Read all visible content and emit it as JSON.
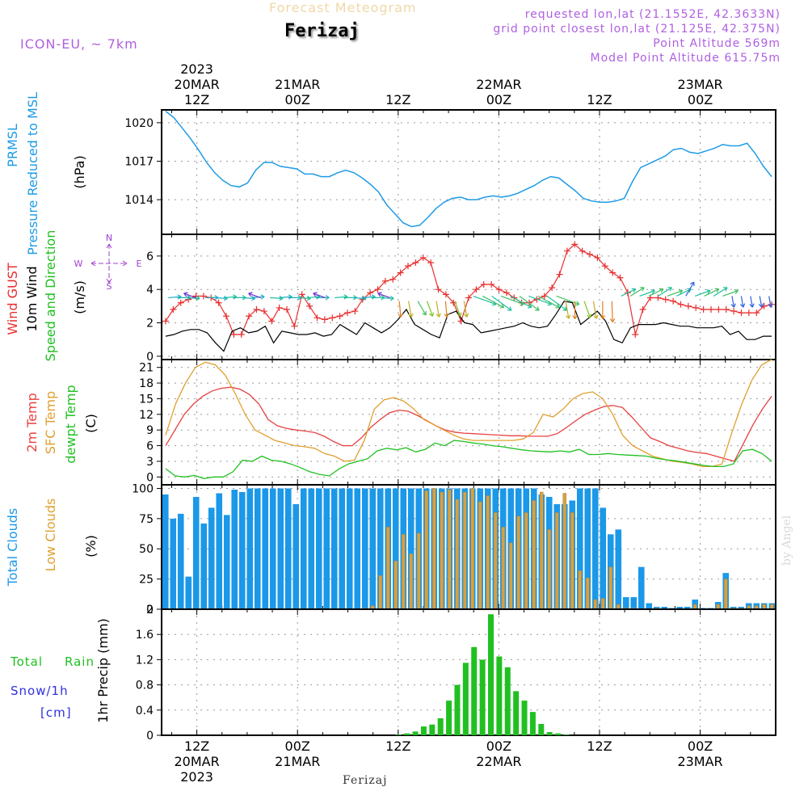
{
  "header": {
    "title_faint": "Forecast Meteogram",
    "location": "Ferizaj",
    "model": "ICON-EU, ~ 7km",
    "requested": "requested lon,lat (21.1552E, 42.3633N)",
    "grid_point": "grid point closest lon,lat (21.125E, 42.375N)",
    "point_alt": "Point Altitude 569m",
    "model_alt": "Model Point Altitude 615.75m"
  },
  "footer": {
    "location": "Ferizaj",
    "credit": "by Angel"
  },
  "colors": {
    "pressure": "#1e9be6",
    "gust": "#e83030",
    "wind": "#000000",
    "temp": "#e84040",
    "sfc": "#e0a030",
    "dew": "#20c020",
    "total": "#1b98e8",
    "low": "#d8a040",
    "rain": "#20c020",
    "snow": "#3030e0",
    "axisLabel": "#a040d0"
  },
  "time_axis": {
    "top_labels": [
      {
        "t": 12,
        "lines": [
          "2023",
          "20MAR",
          "12Z"
        ]
      },
      {
        "t": 24,
        "lines": [
          "21MAR",
          "00Z"
        ]
      },
      {
        "t": 36,
        "lines": [
          "12Z"
        ]
      },
      {
        "t": 48,
        "lines": [
          "22MAR",
          "00Z"
        ]
      },
      {
        "t": 60,
        "lines": [
          "12Z"
        ]
      },
      {
        "t": 72,
        "lines": [
          "23MAR",
          "00Z"
        ]
      }
    ],
    "bottom_labels": [
      {
        "t": 12,
        "lines": [
          "12Z",
          "20MAR",
          "2023"
        ]
      },
      {
        "t": 24,
        "lines": [
          "00Z",
          "21MAR"
        ]
      },
      {
        "t": 36,
        "lines": [
          "12Z"
        ]
      },
      {
        "t": 48,
        "lines": [
          "00Z",
          "22MAR"
        ]
      },
      {
        "t": 60,
        "lines": [
          "12Z"
        ]
      },
      {
        "t": 72,
        "lines": [
          "00Z",
          "23MAR"
        ]
      }
    ]
  },
  "compass": {
    "n": "N",
    "s": "S",
    "w": "W",
    "e": "E"
  },
  "chart_data": [
    {
      "type": "line",
      "panel": "pressure",
      "ylabels": [
        "PRMSL",
        "Pressure Reduced to MSL"
      ],
      "units": "(hPa)",
      "ylim": [
        1011.3,
        1021.0
      ],
      "yticks": [
        1014,
        1017,
        1020
      ],
      "series": [
        {
          "name": "PRMSL",
          "values": [
            1020.9,
            1020.4,
            1019.6,
            1018.8,
            1017.9,
            1016.9,
            1016.1,
            1015.5,
            1015.1,
            1015.0,
            1015.3,
            1016.3,
            1016.9,
            1016.9,
            1016.6,
            1016.5,
            1016.4,
            1016.0,
            1016.0,
            1015.8,
            1015.8,
            1016.1,
            1016.3,
            1016.1,
            1015.7,
            1015.2,
            1014.6,
            1013.6,
            1012.9,
            1012.2,
            1011.9,
            1012.0,
            1012.6,
            1013.3,
            1013.8,
            1014.1,
            1014.2,
            1014.0,
            1014.0,
            1014.2,
            1014.3,
            1014.2,
            1014.3,
            1014.5,
            1014.8,
            1015.1,
            1015.5,
            1015.8,
            1015.7,
            1015.2,
            1014.7,
            1014.1,
            1013.9,
            1013.8,
            1013.8,
            1013.9,
            1014.1,
            1015.4,
            1016.5,
            1016.8,
            1017.1,
            1017.4,
            1017.9,
            1018.0,
            1017.7,
            1017.6,
            1017.8,
            1018.0,
            1018.3,
            1018.2,
            1018.2,
            1018.4,
            1017.6,
            1016.6,
            1015.8
          ]
        }
      ]
    },
    {
      "type": "line",
      "panel": "wind",
      "ylabels": [
        "Wind GUST",
        "10m Wind",
        "Speed and Direction"
      ],
      "units": "(m/s)",
      "ylim": [
        -0.2,
        7.3
      ],
      "yticks": [
        0,
        2,
        4,
        6
      ],
      "series": [
        {
          "name": "Wind GUST",
          "values": [
            2.1,
            2.8,
            3.2,
            3.4,
            3.6,
            3.6,
            3.5,
            3.2,
            2.4,
            1.3,
            1.3,
            2.4,
            2.8,
            2.7,
            2.1,
            2.9,
            2.8,
            1.8,
            3.7,
            3.0,
            2.3,
            2.2,
            2.3,
            2.4,
            2.6,
            2.7,
            3.4,
            3.8,
            4.0,
            4.5,
            4.6,
            5.0,
            5.4,
            5.6,
            5.9,
            5.6,
            4.0,
            3.7,
            3.2,
            2.1,
            3.5,
            4.0,
            4.3,
            4.3,
            4.0,
            3.8,
            3.5,
            3.2,
            3.2,
            3.4,
            3.6,
            4.1,
            4.9,
            6.3,
            6.7,
            6.3,
            6.1,
            5.9,
            5.4,
            5.0,
            4.7,
            3.8,
            1.3,
            2.8,
            3.5,
            3.5,
            3.4,
            3.3,
            3.1,
            3.0,
            2.9,
            2.8,
            2.8,
            2.8,
            2.8,
            2.7,
            2.6,
            2.6,
            2.6,
            3.0,
            3.1
          ]
        },
        {
          "name": "10m Wind",
          "values": [
            1.2,
            1.3,
            1.5,
            1.6,
            1.6,
            1.4,
            0.8,
            0.3,
            1.5,
            1.7,
            1.4,
            1.5,
            1.8,
            0.8,
            1.5,
            1.4,
            1.3,
            1.3,
            1.4,
            1.2,
            1.3,
            1.9,
            1.6,
            1.3,
            2.0,
            1.7,
            1.4,
            1.7,
            2.2,
            2.8,
            1.9,
            1.6,
            1.3,
            1.1,
            2.5,
            2.7,
            2.0,
            1.9,
            1.4,
            1.5,
            1.6,
            1.7,
            1.8,
            2.0,
            1.8,
            1.7,
            1.8,
            2.5,
            3.3,
            3.2,
            1.9,
            2.3,
            2.7,
            2.1,
            1.0,
            0.8,
            1.7,
            1.9,
            1.9,
            1.9,
            2.0,
            1.9,
            1.8,
            1.8,
            1.7,
            1.7,
            1.7,
            1.8,
            1.3,
            1.5,
            1.0,
            1.0,
            1.2,
            1.2
          ]
        }
      ]
    },
    {
      "type": "line",
      "panel": "temperature",
      "ylabels": [
        "2m Temp",
        "SFC Temp",
        "dewpt Temp"
      ],
      "units": "(C)",
      "ylim": [
        -1.5,
        22.5
      ],
      "yticks": [
        0,
        3,
        6,
        9,
        12,
        15,
        18,
        21
      ],
      "series": [
        {
          "name": "2m Temp",
          "values": [
            6.0,
            9.0,
            12.0,
            14.0,
            15.5,
            16.5,
            17.0,
            17.2,
            16.8,
            15.8,
            14.0,
            11.0,
            9.8,
            9.3,
            9.0,
            8.8,
            8.5,
            7.8,
            6.8,
            6.0,
            6.0,
            7.5,
            9.5,
            11.0,
            12.3,
            12.8,
            12.6,
            11.8,
            10.8,
            9.8,
            9.0,
            8.6,
            8.4,
            8.3,
            8.2,
            8.1,
            8.0,
            7.9,
            7.9,
            7.8,
            7.8,
            7.8,
            8.3,
            9.5,
            10.8,
            12.0,
            12.8,
            13.5,
            13.7,
            13.3,
            11.5,
            9.5,
            7.5,
            6.8,
            6.0,
            5.5,
            5.0,
            4.7,
            4.5,
            4.0,
            3.5,
            3.0,
            6.5,
            10.0,
            13.0,
            15.5
          ]
        },
        {
          "name": "SFC Temp",
          "values": [
            8.0,
            14.0,
            18.0,
            21.0,
            22.0,
            21.5,
            19.5,
            16.0,
            12.0,
            9.0,
            8.0,
            7.0,
            6.5,
            6.0,
            5.8,
            5.5,
            4.5,
            4.0,
            3.0,
            3.2,
            7.0,
            13.0,
            14.8,
            15.2,
            14.5,
            13.0,
            11.0,
            10.0,
            9.0,
            8.0,
            7.3,
            7.0,
            7.0,
            7.0,
            7.0,
            7.0,
            7.3,
            8.5,
            12.0,
            11.5,
            13.0,
            15.0,
            16.0,
            16.3,
            15.0,
            12.0,
            8.0,
            6.0,
            5.0,
            4.0,
            3.5,
            3.0,
            2.8,
            2.5,
            2.0,
            2.0,
            2.5,
            8.5,
            14.0,
            18.5,
            21.5,
            22.5
          ]
        },
        {
          "name": "dewpt Temp",
          "values": [
            1.6,
            0.2,
            0.0,
            0.3,
            -0.3,
            0.0,
            0.0,
            1.0,
            3.2,
            3.0,
            4.0,
            3.2,
            3.0,
            2.5,
            1.8,
            1.0,
            0.5,
            0.2,
            1.5,
            2.5,
            3.0,
            3.5,
            5.0,
            5.5,
            5.2,
            5.6,
            4.8,
            5.3,
            6.5,
            6.0,
            7.0,
            6.8,
            6.5,
            6.3,
            6.0,
            5.8,
            5.5,
            5.2,
            5.0,
            4.9,
            4.8,
            5.0,
            4.8,
            5.3,
            4.3,
            4.3,
            4.5,
            4.3,
            4.2,
            4.1,
            4.0,
            3.6,
            3.3,
            3.1,
            2.8,
            2.5,
            2.2,
            2.0,
            2.0,
            2.5,
            5.0,
            5.3,
            4.5,
            3.0
          ]
        }
      ]
    },
    {
      "type": "bar",
      "panel": "clouds",
      "ylabels": [
        "Total Clouds",
        "Low Clouds"
      ],
      "units": "(%)",
      "ylim": [
        0,
        103
      ],
      "yticks": [
        0,
        25,
        50,
        75,
        100
      ],
      "series": [
        {
          "name": "Total Clouds",
          "values": [
            95,
            75,
            79,
            27,
            93,
            71,
            84,
            96,
            78,
            99,
            97,
            100,
            100,
            100,
            100,
            100,
            100,
            87,
            100,
            100,
            100,
            100,
            100,
            100,
            100,
            100,
            100,
            100,
            100,
            100,
            100,
            100,
            100,
            100,
            100,
            100,
            100,
            100,
            100,
            100,
            100,
            100,
            100,
            100,
            100,
            100,
            100,
            100,
            100,
            95,
            93,
            87,
            87,
            90,
            100,
            100,
            100,
            84,
            62,
            66,
            10,
            10,
            35,
            5,
            2,
            2,
            1,
            2,
            2,
            8,
            1,
            1,
            6,
            30,
            2,
            2,
            5,
            5,
            5,
            5
          ]
        },
        {
          "name": "Low Clouds",
          "values": [
            0,
            0,
            0,
            0,
            0,
            0,
            0,
            0,
            0,
            0,
            0,
            0,
            0,
            0,
            0,
            0,
            0,
            0,
            0,
            0,
            0,
            0,
            0,
            0,
            0,
            0,
            1,
            3,
            28,
            68,
            40,
            62,
            46,
            63,
            98,
            100,
            97,
            99,
            91,
            97,
            100,
            89,
            94,
            80,
            68,
            55,
            77,
            80,
            90,
            97,
            66,
            80,
            96,
            80,
            32,
            26,
            8,
            9,
            35,
            4,
            1,
            1,
            0,
            0,
            1,
            0,
            0,
            0,
            0,
            4,
            0,
            0,
            4,
            25,
            1,
            1,
            3,
            3,
            4,
            4
          ]
        }
      ]
    },
    {
      "type": "bar",
      "panel": "precip",
      "ylabels": [
        "1hr Precip (mm)"
      ],
      "legend": [
        "Total",
        "Rain",
        "Snow/1h",
        "[cm]"
      ],
      "ylim": [
        0,
        2.0
      ],
      "yticks": [
        0,
        0.4,
        0.8,
        1.2,
        1.6,
        2
      ],
      "series": [
        {
          "name": "Total Rain",
          "t_start": 36,
          "values": [
            0.01,
            0.03,
            0.06,
            0.14,
            0.17,
            0.27,
            0.55,
            0.8,
            1.15,
            1.4,
            1.2,
            1.92,
            1.25,
            1.08,
            0.7,
            0.55,
            0.37,
            0.18,
            0.05,
            0.03,
            0.01
          ]
        }
      ]
    }
  ]
}
